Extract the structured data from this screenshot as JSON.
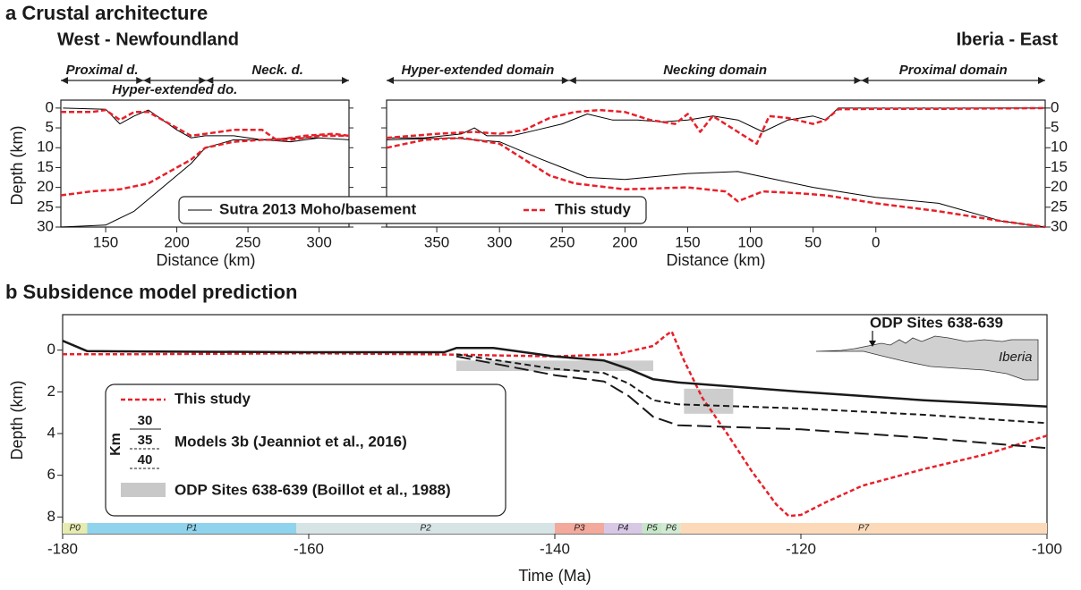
{
  "chart_data": [
    {
      "type": "line",
      "title": "a Crustal architecture",
      "subtitle": "West - Newfoundland",
      "x_label": "Distance (km)",
      "y_label": "Depth (km)",
      "xlim": [
        118.5,
        321
      ],
      "xticks": [
        150,
        200,
        250,
        300
      ],
      "ylim": [
        30,
        -2
      ],
      "yticks": [
        0,
        5,
        10,
        15,
        20,
        25,
        30
      ],
      "ytick_side": "left",
      "domains": [
        {
          "label": "Proximal d.",
          "from": 118.5,
          "to": 176.5
        },
        {
          "label": "Hyper-extended do.",
          "from": 176.5,
          "to": 220.6
        },
        {
          "label": "Neck. d.",
          "from": 220.6,
          "to": 321
        }
      ],
      "legend": "bottom",
      "series": [
        {
          "name": "Sutra 2013 Moho/basement",
          "color": "#000000",
          "dash": "none",
          "width": 1,
          "x": [
            120,
            150,
            160,
            170,
            180,
            190,
            200,
            210,
            220,
            240,
            260,
            280,
            300,
            321,
            null,
            118.5,
            150,
            170,
            190,
            210,
            220,
            240,
            260,
            280,
            300,
            321
          ],
          "values": [
            0,
            0.3,
            4,
            2,
            0.5,
            3,
            5.5,
            7.5,
            7,
            7,
            8,
            7.5,
            7.5,
            8,
            null,
            30,
            29.5,
            26,
            20,
            14,
            10,
            8,
            8,
            8.5,
            7.5,
            8
          ]
        },
        {
          "name": "This study",
          "color": "#e8202a",
          "dash": "6,3",
          "width": 2.5,
          "x": [
            118.5,
            140,
            150,
            160,
            170,
            180,
            190,
            200,
            210,
            220,
            240,
            260,
            270,
            290,
            310,
            321,
            null,
            118.5,
            140,
            160,
            180,
            200,
            210,
            220,
            240,
            260,
            280,
            300,
            321
          ],
          "values": [
            1,
            1,
            0.5,
            3,
            1,
            1,
            3,
            5,
            7,
            6.5,
            5.5,
            5.5,
            8,
            7,
            6.5,
            7,
            null,
            22,
            21,
            20.5,
            19,
            15,
            13,
            10,
            8.5,
            8,
            8,
            7,
            7
          ]
        }
      ]
    },
    {
      "type": "line",
      "subtitle": "Iberia - East",
      "x_label": "Distance (km)",
      "xlim": [
        390,
        -135
      ],
      "xticks": [
        350,
        300,
        250,
        200,
        150,
        100,
        50,
        0
      ],
      "ylim": [
        30,
        -2
      ],
      "yticks": [
        0,
        5,
        10,
        15,
        20,
        25,
        30
      ],
      "ytick_side": "right",
      "domains": [
        {
          "label": "Hyper-extended domain",
          "from": 390,
          "to": 244.6
        },
        {
          "label": "Necking domain",
          "from": 244.6,
          "to": 11.6
        },
        {
          "label": "Proximal domain",
          "from": 11.6,
          "to": -135
        }
      ],
      "series": [
        {
          "color": "#000000",
          "dash": "none",
          "width": 1,
          "x": [
            390,
            360,
            330,
            320,
            310,
            290,
            270,
            250,
            230,
            210,
            190,
            170,
            150,
            130,
            110,
            90,
            70,
            50,
            40,
            30,
            0,
            -50,
            -135,
            null,
            390,
            340,
            300,
            270,
            250,
            230,
            200,
            150,
            110,
            80,
            50,
            0,
            -50,
            -100,
            -135
          ],
          "values": [
            7.5,
            7.5,
            6.5,
            5,
            7,
            7,
            5.5,
            4,
            1.5,
            3,
            3,
            3.5,
            3,
            2,
            3,
            6,
            3,
            2,
            3,
            0,
            0,
            0,
            0,
            null,
            8,
            7.5,
            8.5,
            12.5,
            15,
            17.5,
            18,
            16.5,
            16,
            18,
            20,
            22.5,
            24,
            28.5,
            30
          ]
        },
        {
          "color": "#e8202a",
          "dash": "6,3",
          "width": 2.5,
          "x": [
            390,
            350,
            320,
            300,
            280,
            260,
            240,
            220,
            200,
            180,
            160,
            150,
            140,
            130,
            110,
            95,
            85,
            70,
            50,
            40,
            30,
            0,
            -50,
            -135,
            null,
            390,
            360,
            330,
            300,
            280,
            260,
            240,
            200,
            150,
            120,
            110,
            90,
            60,
            40,
            0,
            -50,
            -100,
            -135
          ],
          "values": [
            7.5,
            6.5,
            6,
            6.5,
            5.5,
            2.5,
            1,
            0.5,
            1,
            3,
            4,
            1.5,
            6,
            2,
            6,
            9,
            2,
            2.5,
            4,
            3,
            0.3,
            0.2,
            0.2,
            0,
            null,
            10,
            8,
            7.5,
            9,
            13,
            17,
            19,
            20.5,
            20,
            21,
            23.5,
            21,
            21.5,
            22,
            24,
            26,
            28.5,
            30
          ]
        }
      ]
    },
    {
      "type": "line",
      "title": "b Subsidence model prediction",
      "x_label": "Time (Ma)",
      "y_label": "Depth (km)",
      "xlim": [
        -180,
        -100
      ],
      "xticks": [
        -180,
        -160,
        -140,
        -120,
        -100
      ],
      "ylim": [
        8.8,
        -1.7
      ],
      "yticks": [
        0,
        2,
        4,
        6,
        8
      ],
      "ytick_side": "left",
      "legend_group": "Models 3b (Jeanniot et al., 2016)",
      "legend_units": "Km",
      "boxes_label": "ODP Sites 638-639 (Boillot et al., 1988)",
      "box_color": "#c8c8c8",
      "boxes": [
        {
          "x0": -148,
          "x1": -132,
          "y0": 0.5,
          "y1": 1.0
        },
        {
          "x0": -129.5,
          "x1": -125.5,
          "y0": 1.85,
          "y1": 3.05
        }
      ],
      "annotations": [
        "ODP Sites 638-639",
        "Iberia"
      ],
      "phases": [
        {
          "label": "P0",
          "from": -180,
          "to": -178,
          "color": "#e6ebb0"
        },
        {
          "label": "P1",
          "from": -178,
          "to": -161,
          "color": "#8fd4ec"
        },
        {
          "label": "P2",
          "from": -161,
          "to": -140,
          "color": "#d6e4e6"
        },
        {
          "label": "P3",
          "from": -140,
          "to": -136,
          "color": "#f3a99b"
        },
        {
          "label": "P4",
          "from": -136,
          "to": -132.9,
          "color": "#d8c8e6"
        },
        {
          "label": "P5",
          "from": -132.9,
          "to": -131.3,
          "color": "#c6e6c8"
        },
        {
          "label": "P6",
          "from": -131.3,
          "to": -129.8,
          "color": "#d2ead2"
        },
        {
          "label": "P7",
          "from": -129.8,
          "to": -100,
          "color": "#fbd9b9"
        }
      ],
      "series": [
        {
          "name": "This study",
          "color": "#e8202a",
          "dash": "5,3",
          "width": 2.5,
          "x": [
            -180,
            -175,
            -160,
            -150,
            -140,
            -135,
            -132,
            -131,
            -130.5,
            -129.5,
            -128,
            -126,
            -124,
            -122,
            -121,
            -120,
            -118,
            -115,
            -110,
            -105,
            -100
          ],
          "values": [
            0.2,
            0.2,
            0.15,
            0.2,
            0.3,
            0.2,
            -0.2,
            -0.7,
            -0.9,
            0.5,
            2.3,
            4,
            5.8,
            7.4,
            7.95,
            7.9,
            7.3,
            6.5,
            5.7,
            5,
            4.1
          ]
        },
        {
          "name": "30",
          "color": "#1a1a1a",
          "dash": "none",
          "width": 2.5,
          "x": [
            -180,
            -178,
            -160,
            -149,
            -148,
            -145,
            -140,
            -136,
            -134,
            -132,
            -130,
            -120,
            -110,
            -100
          ],
          "values": [
            -0.45,
            0.05,
            0.1,
            0.1,
            -0.1,
            -0.1,
            0.3,
            0.5,
            0.9,
            1.4,
            1.55,
            2,
            2.4,
            2.7
          ]
        },
        {
          "name": "35",
          "color": "#1a1a1a",
          "dash": "7,4",
          "width": 2,
          "x": [
            -148,
            -140,
            -136,
            -134,
            -132,
            -130,
            -120,
            -110,
            -100
          ],
          "values": [
            0.2,
            0.9,
            1.1,
            1.6,
            2.4,
            2.6,
            2.8,
            3.1,
            3.5
          ]
        },
        {
          "name": "40",
          "color": "#1a1a1a",
          "dash": "16,6",
          "width": 2,
          "x": [
            -148,
            -140,
            -136,
            -134,
            -132,
            -130,
            -120,
            -110,
            -100
          ],
          "values": [
            0.3,
            1.2,
            1.5,
            2.2,
            3.2,
            3.6,
            3.8,
            4.2,
            4.7
          ]
        }
      ]
    }
  ]
}
